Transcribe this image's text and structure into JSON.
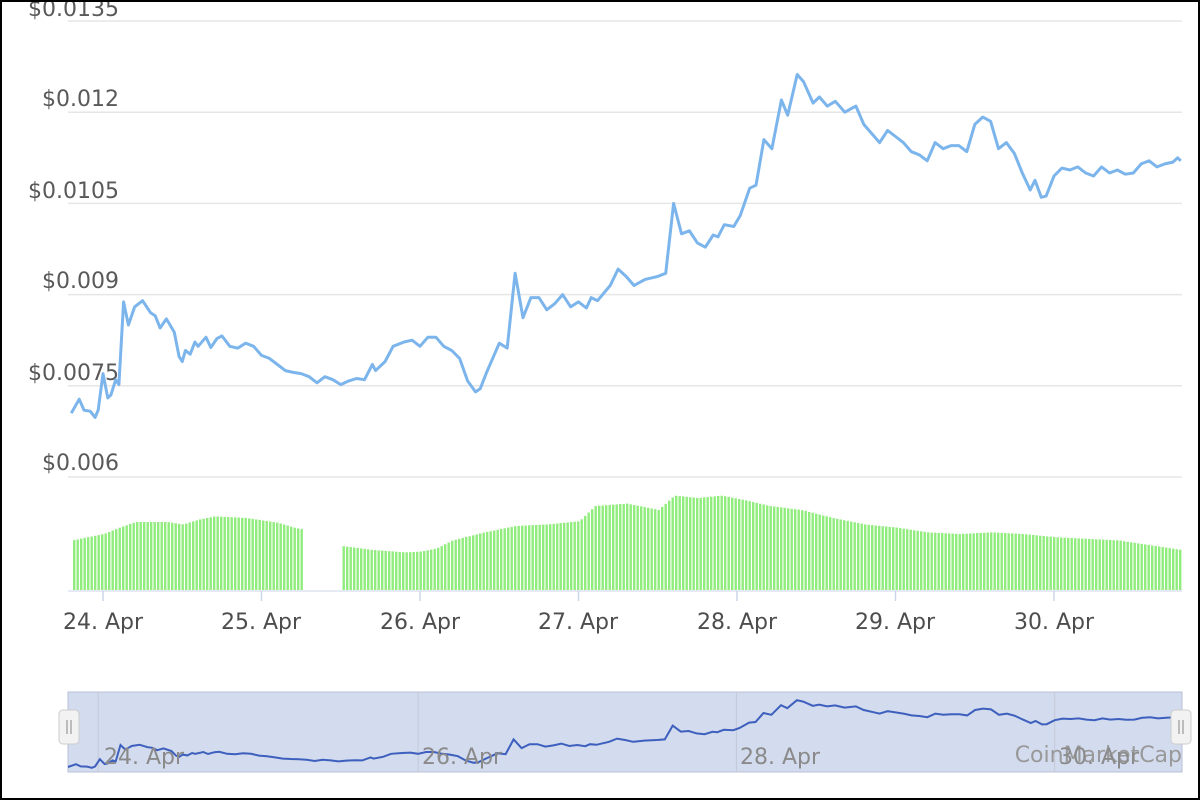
{
  "colors": {
    "price_line": "#7cb5ec",
    "volume_bar": "#90ed7d",
    "grid": "#e6e6e6",
    "navigator_fill": "#d3dbee",
    "navigator_line": "#3d5fbd"
  },
  "credit": "CoinMarketCap",
  "chart_data": {
    "type": "line",
    "y_ticks": [
      "$0.006",
      "$0.0075",
      "$0.009",
      "$0.0105",
      "$0.012",
      "$0.0135"
    ],
    "ylim": [
      0.006,
      0.0135
    ],
    "x_ticks": [
      "24. Apr",
      "25. Apr",
      "26. Apr",
      "27. Apr",
      "28. Apr",
      "29. Apr",
      "30. Apr"
    ],
    "navigator_ticks": [
      "24. Apr",
      "26. Apr",
      "28. Apr",
      "30. Apr"
    ],
    "xlim_days": [
      23.8,
      30.8
    ],
    "price_series": [
      [
        23.8,
        0.00705
      ],
      [
        23.85,
        0.00728
      ],
      [
        23.88,
        0.0071
      ],
      [
        23.92,
        0.00708
      ],
      [
        23.95,
        0.00698
      ],
      [
        23.97,
        0.0071
      ],
      [
        24.0,
        0.0077
      ],
      [
        24.03,
        0.0073
      ],
      [
        24.05,
        0.00735
      ],
      [
        24.08,
        0.0076
      ],
      [
        24.1,
        0.00752
      ],
      [
        24.13,
        0.00888
      ],
      [
        24.16,
        0.0085
      ],
      [
        24.2,
        0.0088
      ],
      [
        24.25,
        0.0089
      ],
      [
        24.3,
        0.0087
      ],
      [
        24.33,
        0.00865
      ],
      [
        24.36,
        0.00845
      ],
      [
        24.4,
        0.0086
      ],
      [
        24.45,
        0.00838
      ],
      [
        24.48,
        0.00798
      ],
      [
        24.5,
        0.0079
      ],
      [
        24.52,
        0.00808
      ],
      [
        24.55,
        0.00802
      ],
      [
        24.58,
        0.00822
      ],
      [
        24.6,
        0.00815
      ],
      [
        24.65,
        0.0083
      ],
      [
        24.68,
        0.00813
      ],
      [
        24.72,
        0.00828
      ],
      [
        24.75,
        0.00832
      ],
      [
        24.8,
        0.00815
      ],
      [
        24.85,
        0.00812
      ],
      [
        24.9,
        0.0082
      ],
      [
        24.95,
        0.00815
      ],
      [
        25.0,
        0.008
      ],
      [
        25.05,
        0.00795
      ],
      [
        25.1,
        0.00785
      ],
      [
        25.15,
        0.00775
      ],
      [
        25.2,
        0.00772
      ],
      [
        25.25,
        0.0077
      ],
      [
        25.3,
        0.00765
      ],
      [
        25.35,
        0.00755
      ],
      [
        25.4,
        0.00765
      ],
      [
        25.45,
        0.0076
      ],
      [
        25.5,
        0.00752
      ],
      [
        25.55,
        0.00758
      ],
      [
        25.6,
        0.00762
      ],
      [
        25.65,
        0.0076
      ],
      [
        25.7,
        0.00785
      ],
      [
        25.72,
        0.00775
      ],
      [
        25.78,
        0.0079
      ],
      [
        25.83,
        0.00815
      ],
      [
        25.9,
        0.00822
      ],
      [
        25.95,
        0.00825
      ],
      [
        26.0,
        0.00815
      ],
      [
        26.05,
        0.0083
      ],
      [
        26.1,
        0.0083
      ],
      [
        26.15,
        0.00815
      ],
      [
        26.2,
        0.00808
      ],
      [
        26.25,
        0.00795
      ],
      [
        26.3,
        0.00758
      ],
      [
        26.35,
        0.0074
      ],
      [
        26.38,
        0.00745
      ],
      [
        26.42,
        0.00772
      ],
      [
        26.5,
        0.0082
      ],
      [
        26.55,
        0.00812
      ],
      [
        26.6,
        0.00935
      ],
      [
        26.65,
        0.00862
      ],
      [
        26.7,
        0.00895
      ],
      [
        26.75,
        0.00895
      ],
      [
        26.8,
        0.00875
      ],
      [
        26.85,
        0.00885
      ],
      [
        26.9,
        0.009
      ],
      [
        26.95,
        0.0088
      ],
      [
        27.0,
        0.00888
      ],
      [
        27.05,
        0.00878
      ],
      [
        27.08,
        0.00895
      ],
      [
        27.12,
        0.0089
      ],
      [
        27.2,
        0.00915
      ],
      [
        27.25,
        0.00942
      ],
      [
        27.3,
        0.0093
      ],
      [
        27.35,
        0.00915
      ],
      [
        27.42,
        0.00925
      ],
      [
        27.5,
        0.0093
      ],
      [
        27.55,
        0.00935
      ],
      [
        27.6,
        0.0105
      ],
      [
        27.65,
        0.01
      ],
      [
        27.7,
        0.01005
      ],
      [
        27.75,
        0.00985
      ],
      [
        27.8,
        0.00978
      ],
      [
        27.85,
        0.00998
      ],
      [
        27.88,
        0.00995
      ],
      [
        27.92,
        0.01015
      ],
      [
        27.98,
        0.01012
      ],
      [
        28.02,
        0.0103
      ],
      [
        28.08,
        0.01075
      ],
      [
        28.12,
        0.0108
      ],
      [
        28.17,
        0.01155
      ],
      [
        28.22,
        0.0114
      ],
      [
        28.28,
        0.0122
      ],
      [
        28.32,
        0.01195
      ],
      [
        28.38,
        0.01262
      ],
      [
        28.42,
        0.0125
      ],
      [
        28.48,
        0.01215
      ],
      [
        28.52,
        0.01225
      ],
      [
        28.57,
        0.0121
      ],
      [
        28.62,
        0.01218
      ],
      [
        28.68,
        0.012
      ],
      [
        28.75,
        0.0121
      ],
      [
        28.8,
        0.0118
      ],
      [
        28.85,
        0.01165
      ],
      [
        28.9,
        0.0115
      ],
      [
        28.95,
        0.0117
      ],
      [
        29.0,
        0.0116
      ],
      [
        29.05,
        0.0115
      ],
      [
        29.1,
        0.01135
      ],
      [
        29.15,
        0.0113
      ],
      [
        29.2,
        0.0112
      ],
      [
        29.25,
        0.0115
      ],
      [
        29.3,
        0.0114
      ],
      [
        29.35,
        0.01145
      ],
      [
        29.4,
        0.01145
      ],
      [
        29.45,
        0.01135
      ],
      [
        29.5,
        0.0118
      ],
      [
        29.55,
        0.01192
      ],
      [
        29.6,
        0.01185
      ],
      [
        29.65,
        0.0114
      ],
      [
        29.7,
        0.0115
      ],
      [
        29.75,
        0.01132
      ],
      [
        29.8,
        0.011
      ],
      [
        29.85,
        0.01072
      ],
      [
        29.88,
        0.01088
      ],
      [
        29.92,
        0.0106
      ],
      [
        29.95,
        0.01062
      ],
      [
        30.0,
        0.01095
      ],
      [
        30.05,
        0.01108
      ],
      [
        30.1,
        0.01105
      ],
      [
        30.15,
        0.0111
      ],
      [
        30.2,
        0.011
      ],
      [
        30.25,
        0.01095
      ],
      [
        30.3,
        0.0111
      ],
      [
        30.35,
        0.011
      ],
      [
        30.4,
        0.01105
      ],
      [
        30.45,
        0.01098
      ],
      [
        30.5,
        0.011
      ],
      [
        30.55,
        0.01115
      ],
      [
        30.6,
        0.0112
      ],
      [
        30.65,
        0.0111
      ],
      [
        30.7,
        0.01115
      ],
      [
        30.75,
        0.01118
      ],
      [
        30.78,
        0.01125
      ],
      [
        30.8,
        0.0112
      ]
    ],
    "volume_level_series": [
      [
        23.8,
        0.62
      ],
      [
        24.0,
        0.7
      ],
      [
        24.1,
        0.78
      ],
      [
        24.2,
        0.85
      ],
      [
        24.4,
        0.85
      ],
      [
        24.5,
        0.82
      ],
      [
        24.6,
        0.88
      ],
      [
        24.7,
        0.92
      ],
      [
        24.9,
        0.9
      ],
      [
        25.1,
        0.84
      ],
      [
        25.2,
        0.78
      ],
      [
        25.25,
        0.76
      ],
      [
        25.3,
        null
      ],
      [
        25.45,
        null
      ],
      [
        25.5,
        0.55
      ],
      [
        25.7,
        0.5
      ],
      [
        25.9,
        0.47
      ],
      [
        26.0,
        0.48
      ],
      [
        26.1,
        0.52
      ],
      [
        26.2,
        0.62
      ],
      [
        26.4,
        0.72
      ],
      [
        26.6,
        0.8
      ],
      [
        26.8,
        0.82
      ],
      [
        27.0,
        0.86
      ],
      [
        27.1,
        1.05
      ],
      [
        27.3,
        1.08
      ],
      [
        27.5,
        1.0
      ],
      [
        27.6,
        1.18
      ],
      [
        27.75,
        1.15
      ],
      [
        27.9,
        1.18
      ],
      [
        28.05,
        1.12
      ],
      [
        28.2,
        1.05
      ],
      [
        28.4,
        1.0
      ],
      [
        28.6,
        0.9
      ],
      [
        28.8,
        0.82
      ],
      [
        29.0,
        0.78
      ],
      [
        29.2,
        0.72
      ],
      [
        29.4,
        0.7
      ],
      [
        29.6,
        0.72
      ],
      [
        29.8,
        0.7
      ],
      [
        30.0,
        0.66
      ],
      [
        30.2,
        0.64
      ],
      [
        30.4,
        0.62
      ],
      [
        30.6,
        0.56
      ],
      [
        30.8,
        0.5
      ]
    ]
  }
}
